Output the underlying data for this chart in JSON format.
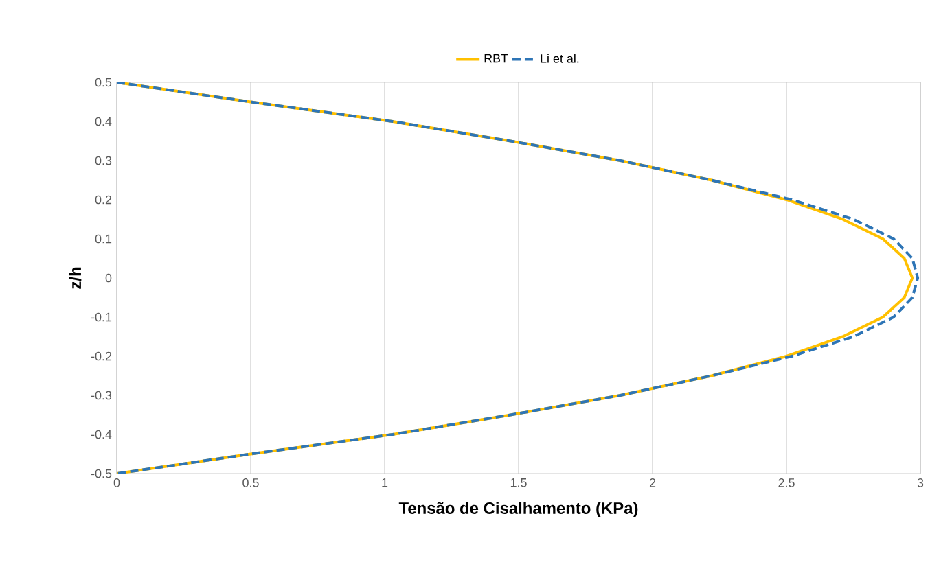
{
  "chart_data": {
    "type": "line",
    "xlabel": "Tensão de Cisalhamento (KPa)",
    "ylabel": "z/h",
    "xlim": [
      0,
      3
    ],
    "xticks": [
      0,
      0.5,
      1,
      1.5,
      2,
      2.5,
      3
    ],
    "ylim": [
      -0.5,
      0.5
    ],
    "yticks": [
      -0.5,
      -0.4,
      -0.3,
      -0.2,
      -0.1,
      0,
      0.1,
      0.2,
      0.3,
      0.4,
      0.5
    ],
    "grid": "x",
    "legend": "top",
    "marker": "none",
    "series": [
      {
        "name": "RBT",
        "color": "#ffc000",
        "line_style": "solid",
        "x": [
          0,
          0.5,
          1.03,
          1.47,
          1.88,
          2.22,
          2.5,
          2.71,
          2.86,
          2.94,
          2.97,
          2.94,
          2.86,
          2.71,
          2.5,
          2.22,
          1.88,
          1.47,
          1.03,
          0.5,
          0
        ],
        "values": [
          0.5,
          0.45,
          0.4,
          0.35,
          0.3,
          0.25,
          0.2,
          0.15,
          0.1,
          0.05,
          0,
          -0.05,
          -0.1,
          -0.15,
          -0.2,
          -0.25,
          -0.3,
          -0.35,
          -0.4,
          -0.45,
          -0.5
        ]
      },
      {
        "name": "Li et al.",
        "color": "#2e75b6",
        "line_style": "dashed",
        "x": [
          0,
          0.5,
          1.03,
          1.47,
          1.88,
          2.22,
          2.52,
          2.75,
          2.9,
          2.97,
          2.99,
          2.97,
          2.9,
          2.75,
          2.52,
          2.22,
          1.88,
          1.47,
          1.03,
          0.5,
          0
        ],
        "values": [
          0.5,
          0.45,
          0.4,
          0.35,
          0.3,
          0.25,
          0.2,
          0.15,
          0.1,
          0.05,
          0,
          -0.05,
          -0.1,
          -0.15,
          -0.2,
          -0.25,
          -0.3,
          -0.35,
          -0.4,
          -0.45,
          -0.5
        ]
      }
    ]
  }
}
